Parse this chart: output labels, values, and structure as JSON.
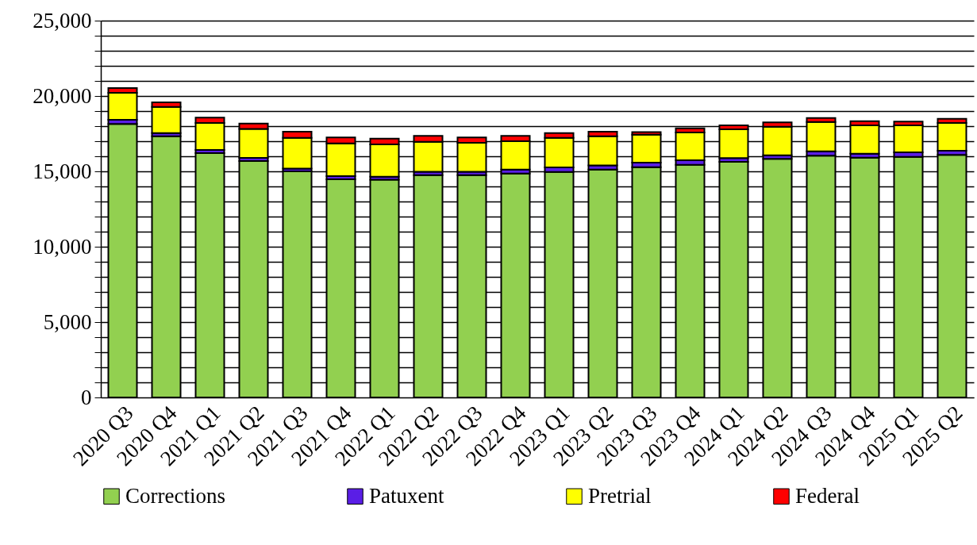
{
  "chart_data": {
    "type": "bar",
    "stacked": true,
    "categories": [
      "2020 Q3",
      "2020 Q4",
      "2021 Q1",
      "2021 Q2",
      "2021 Q3",
      "2021 Q4",
      "2022 Q1",
      "2022 Q2",
      "2022 Q3",
      "2022 Q4",
      "2023 Q1",
      "2023 Q2",
      "2023 Q3",
      "2023 Q4",
      "2024 Q1",
      "2024 Q2",
      "2024 Q3",
      "2024 Q4",
      "2025 Q1",
      "2025 Q2"
    ],
    "series": [
      {
        "name": "Corrections",
        "color": "#92d050",
        "values": [
          18150,
          17330,
          16210,
          15680,
          15000,
          14470,
          14450,
          14750,
          14750,
          14860,
          14960,
          15120,
          15280,
          15440,
          15630,
          15830,
          16040,
          15910,
          15960,
          16090
        ]
      },
      {
        "name": "Patuxent",
        "color": "#5a1ee6",
        "values": [
          270,
          210,
          210,
          210,
          190,
          210,
          200,
          230,
          230,
          260,
          300,
          280,
          300,
          300,
          250,
          240,
          290,
          260,
          300,
          280
        ]
      },
      {
        "name": "Pretrial",
        "color": "#ffff00",
        "values": [
          1790,
          1740,
          1790,
          1920,
          2040,
          2180,
          2140,
          1980,
          1910,
          1880,
          1970,
          1930,
          1860,
          1840,
          1910,
          1890,
          1950,
          1880,
          1790,
          1840
        ]
      },
      {
        "name": "Federal",
        "color": "#ff0000",
        "values": [
          320,
          300,
          350,
          360,
          400,
          390,
          380,
          390,
          360,
          350,
          310,
          300,
          170,
          280,
          260,
          290,
          260,
          280,
          250,
          280
        ]
      }
    ],
    "ylim": [
      0,
      25000
    ],
    "yticks": [
      {
        "value": 0,
        "label": "0"
      },
      {
        "value": 1000,
        "label": null
      },
      {
        "value": 2000,
        "label": null
      },
      {
        "value": 3000,
        "label": null
      },
      {
        "value": 4000,
        "label": null
      },
      {
        "value": 5000,
        "label": "5,000"
      },
      {
        "value": 6000,
        "label": null
      },
      {
        "value": 7000,
        "label": null
      },
      {
        "value": 8000,
        "label": null
      },
      {
        "value": 9000,
        "label": null
      },
      {
        "value": 10000,
        "label": "10,000"
      },
      {
        "value": 11000,
        "label": null
      },
      {
        "value": 12000,
        "label": null
      },
      {
        "value": 13000,
        "label": null
      },
      {
        "value": 14000,
        "label": null
      },
      {
        "value": 15000,
        "label": "15,000"
      },
      {
        "value": 16000,
        "label": null
      },
      {
        "value": 17000,
        "label": null
      },
      {
        "value": 18000,
        "label": null
      },
      {
        "value": 19000,
        "label": null
      },
      {
        "value": 20000,
        "label": "20,000"
      },
      {
        "value": 21000,
        "label": null
      },
      {
        "value": 22000,
        "label": null
      },
      {
        "value": 23000,
        "label": null
      },
      {
        "value": 24000,
        "label": null
      },
      {
        "value": 25000,
        "label": "25,000"
      }
    ],
    "grid": "y",
    "legend": "bottom"
  }
}
